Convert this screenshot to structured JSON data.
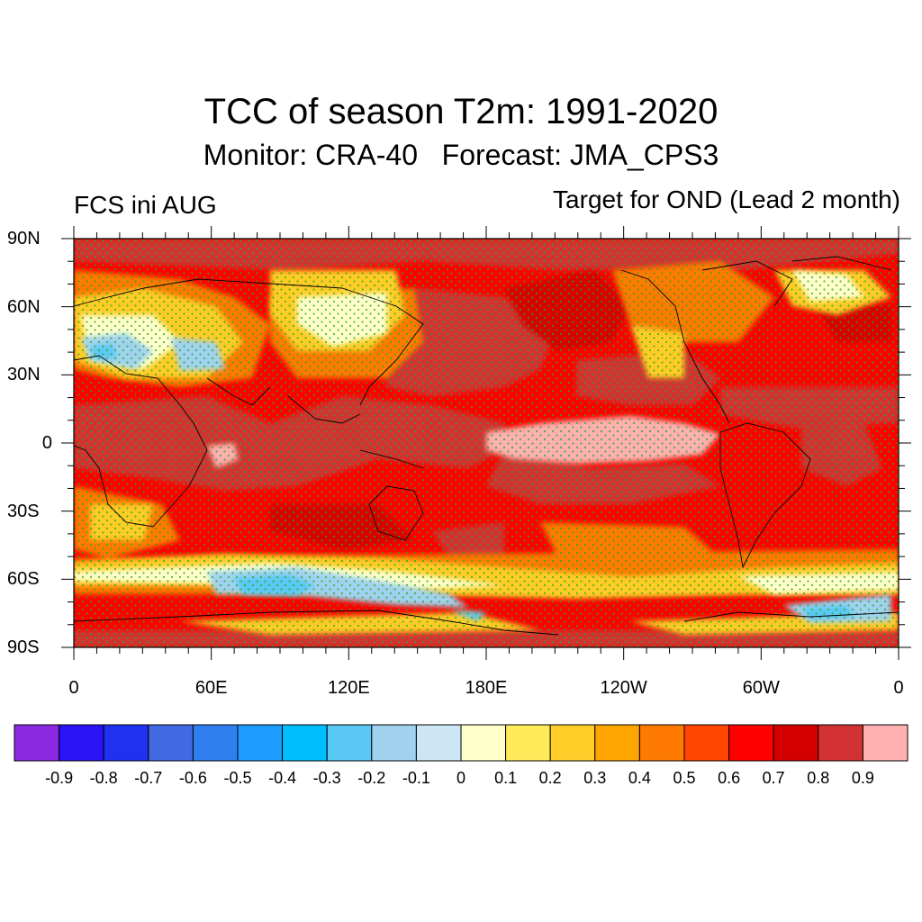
{
  "title": "TCC of season T2m: 1991-2020",
  "subtitle": "Monitor: CRA-40   Forecast: JMA_CPS3",
  "left_label": "FCS ini AUG",
  "right_label": "Target for OND (Lead 2 month)",
  "lat_labels": [
    "90N",
    "60N",
    "30N",
    "0",
    "30S",
    "60S",
    "90S"
  ],
  "lon_labels": [
    "0",
    "60E",
    "120E",
    "180E",
    "120W",
    "60W",
    "0"
  ],
  "colorbar": {
    "colors": [
      "#8a2be2",
      "#2a14f5",
      "#1e32f0",
      "#4169e1",
      "#2f7ff0",
      "#1e9bff",
      "#00bfff",
      "#5ac8f5",
      "#a0d2f0",
      "#cce6f5",
      "#ffffcc",
      "#ffeb5a",
      "#ffcc28",
      "#ffa500",
      "#ff7a00",
      "#ff4500",
      "#ff0000",
      "#d40000",
      "#d33232",
      "#ffb0b0"
    ],
    "labels": [
      "-0.9",
      "-0.8",
      "-0.7",
      "-0.6",
      "-0.5",
      "-0.4",
      "-0.3",
      "-0.2",
      "-0.1",
      "0",
      "0.1",
      "0.2",
      "0.3",
      "0.4",
      "0.5",
      "0.6",
      "0.7",
      "0.8",
      "0.9"
    ]
  },
  "map": {
    "background_level_color": "#ff0000",
    "stipple_color": "#22aa22"
  }
}
